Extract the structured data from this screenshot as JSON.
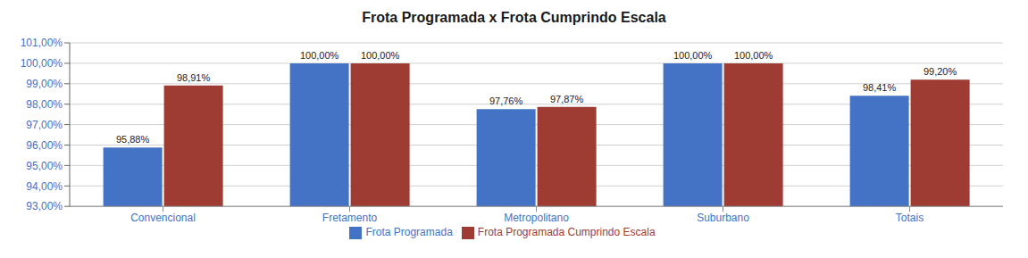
{
  "chart_data": {
    "type": "bar",
    "title": "Frota Programada x Frota Cumprindo Escala",
    "categories": [
      "Convencional",
      "Fretamento",
      "Metropolitano",
      "Suburbano",
      "Totais"
    ],
    "series": [
      {
        "name": "Frota Programada",
        "color": "#4472C4",
        "values": [
          95.88,
          100.0,
          97.76,
          100.0,
          98.41
        ],
        "value_labels": [
          "95,88%",
          "100,00%",
          "97,76%",
          "100,00%",
          "98,41%"
        ]
      },
      {
        "name": "Frota Programada Cumprindo Escala",
        "color": "#9E3B32",
        "values": [
          98.91,
          100.0,
          97.87,
          100.0,
          99.2
        ],
        "value_labels": [
          "98,91%",
          "100,00%",
          "97,87%",
          "100,00%",
          "99,20%"
        ]
      }
    ],
    "ylim": [
      93.0,
      101.0
    ],
    "yticks": [
      {
        "value": 93.0,
        "label": "93,00%"
      },
      {
        "value": 94.0,
        "label": "94,00%"
      },
      {
        "value": 95.0,
        "label": "95,00%"
      },
      {
        "value": 96.0,
        "label": "96,00%"
      },
      {
        "value": 97.0,
        "label": "97,00%"
      },
      {
        "value": 98.0,
        "label": "98,00%"
      },
      {
        "value": 99.0,
        "label": "99,00%"
      },
      {
        "value": 100.0,
        "label": "100,00%"
      },
      {
        "value": 101.0,
        "label": "101,00%"
      }
    ],
    "grid": true,
    "legend": "bottom",
    "data_labels": true
  }
}
